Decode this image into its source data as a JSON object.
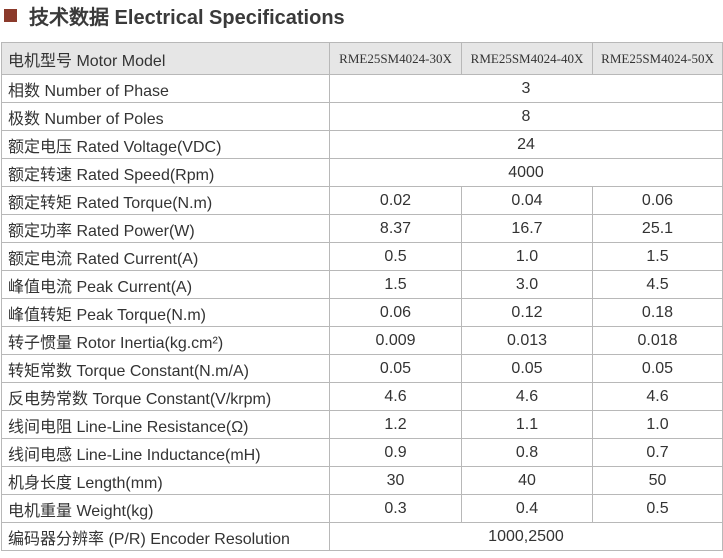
{
  "header": {
    "title": "技术数据 Electrical Specifications"
  },
  "table": {
    "columns": [
      "电机型号 Motor Model",
      "RME25SM4024-30X",
      "RME25SM4024-40X",
      "RME25SM4024-50X"
    ],
    "rows": [
      [
        "相数 Number of Phase",
        "3"
      ],
      [
        "极数 Number of Poles",
        "8"
      ],
      [
        "额定电压 Rated Voltage(VDC)",
        "24"
      ],
      [
        "额定转速 Rated Speed(Rpm)",
        "4000"
      ],
      [
        "额定转矩 Rated Torque(N.m)",
        "0.02",
        "0.04",
        "0.06"
      ],
      [
        "额定功率 Rated Power(W)",
        "8.37",
        "16.7",
        "25.1"
      ],
      [
        "额定电流 Rated Current(A)",
        "0.5",
        "1.0",
        "1.5"
      ],
      [
        "峰值电流 Peak Current(A)",
        "1.5",
        "3.0",
        "4.5"
      ],
      [
        "峰值转矩 Peak Torque(N.m)",
        "0.06",
        "0.12",
        "0.18"
      ],
      [
        "转子惯量 Rotor Inertia(kg.cm²)",
        "0.009",
        "0.013",
        "0.018"
      ],
      [
        "转矩常数 Torque Constant(N.m/A)",
        "0.05",
        "0.05",
        "0.05"
      ],
      [
        "反电势常数 Torque Constant(V/krpm)",
        "4.6",
        "4.6",
        "4.6"
      ],
      [
        "线间电阻 Line-Line Resistance(Ω)",
        "1.2",
        "1.1",
        "1.0"
      ],
      [
        "线间电感 Line-Line Inductance(mH)",
        "0.9",
        "0.8",
        "0.7"
      ],
      [
        "机身长度 Length(mm)",
        "30",
        "40",
        "50"
      ],
      [
        "电机重量 Weight(kg)",
        "0.3",
        "0.4",
        "0.5"
      ],
      [
        "编码器分辨率 (P/R) Encoder Resolution",
        "1000,2500"
      ]
    ]
  }
}
